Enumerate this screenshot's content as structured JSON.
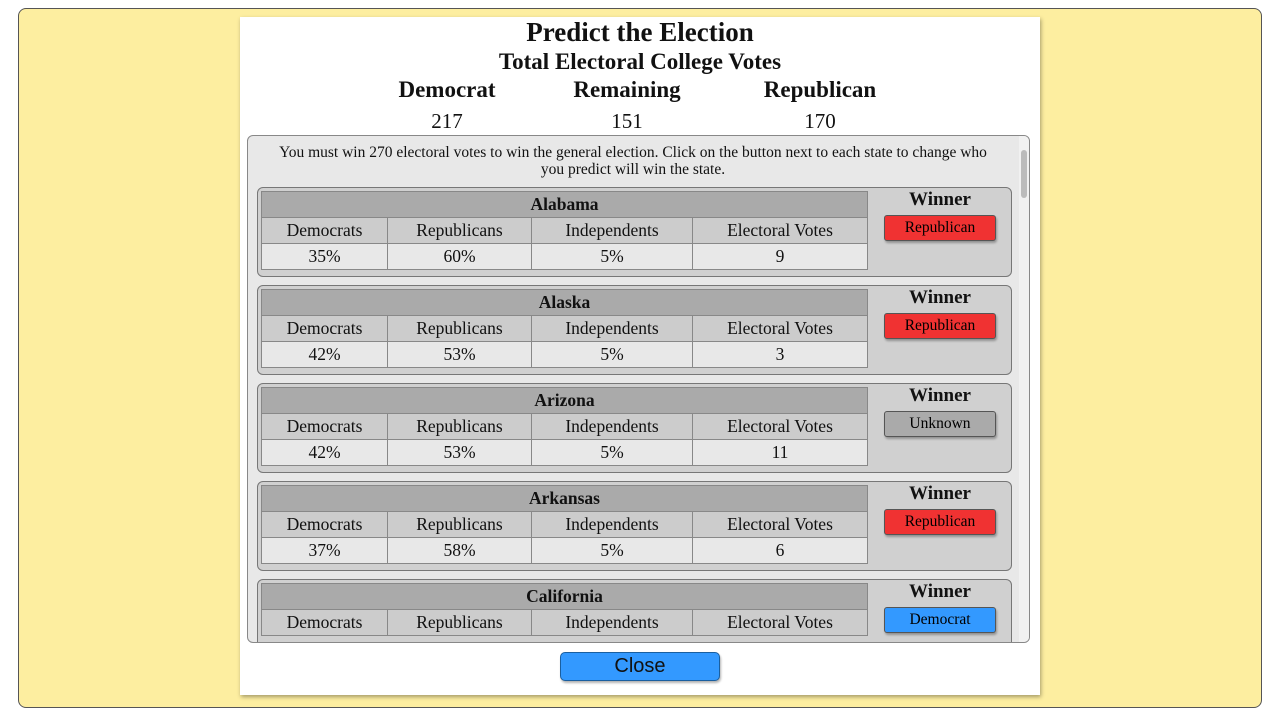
{
  "header": {
    "title": "Predict the Election",
    "subtitle": "Total Electoral College Votes",
    "tallies": [
      {
        "label": "Democrat",
        "value": "217"
      },
      {
        "label": "Remaining",
        "value": "151"
      },
      {
        "label": "Republican",
        "value": "170"
      }
    ]
  },
  "instructions": "You must win 270 electoral votes to win the general election. Click on the button next to each state to change who you predict will win the state.",
  "states": [
    {
      "name": "Alabama",
      "columns": [
        "Democrats",
        "Republicans",
        "Independents",
        "Electoral Votes"
      ],
      "values": [
        "35%",
        "60%",
        "5%",
        "9"
      ],
      "winner_heading": "Winner",
      "winner": "Republican"
    },
    {
      "name": "Alaska",
      "columns": [
        "Democrats",
        "Republicans",
        "Independents",
        "Electoral Votes"
      ],
      "values": [
        "42%",
        "53%",
        "5%",
        "3"
      ],
      "winner_heading": "Winner",
      "winner": "Republican"
    },
    {
      "name": "Arizona",
      "columns": [
        "Democrats",
        "Republicans",
        "Independents",
        "Electoral Votes"
      ],
      "values": [
        "42%",
        "53%",
        "5%",
        "11"
      ],
      "winner_heading": "Winner",
      "winner": "Unknown"
    },
    {
      "name": "Arkansas",
      "columns": [
        "Democrats",
        "Republicans",
        "Independents",
        "Electoral Votes"
      ],
      "values": [
        "37%",
        "58%",
        "5%",
        "6"
      ],
      "winner_heading": "Winner",
      "winner": "Republican"
    },
    {
      "name": "California",
      "columns": [
        "Democrats",
        "Republicans",
        "Independents",
        "Electoral Votes"
      ],
      "winner_heading": "Winner",
      "winner": "Democrat"
    }
  ],
  "button_colors": {
    "Republican": "#f03232",
    "Unknown": "#aaaaaa",
    "Democrat": "#3399ff"
  },
  "close": "Close"
}
